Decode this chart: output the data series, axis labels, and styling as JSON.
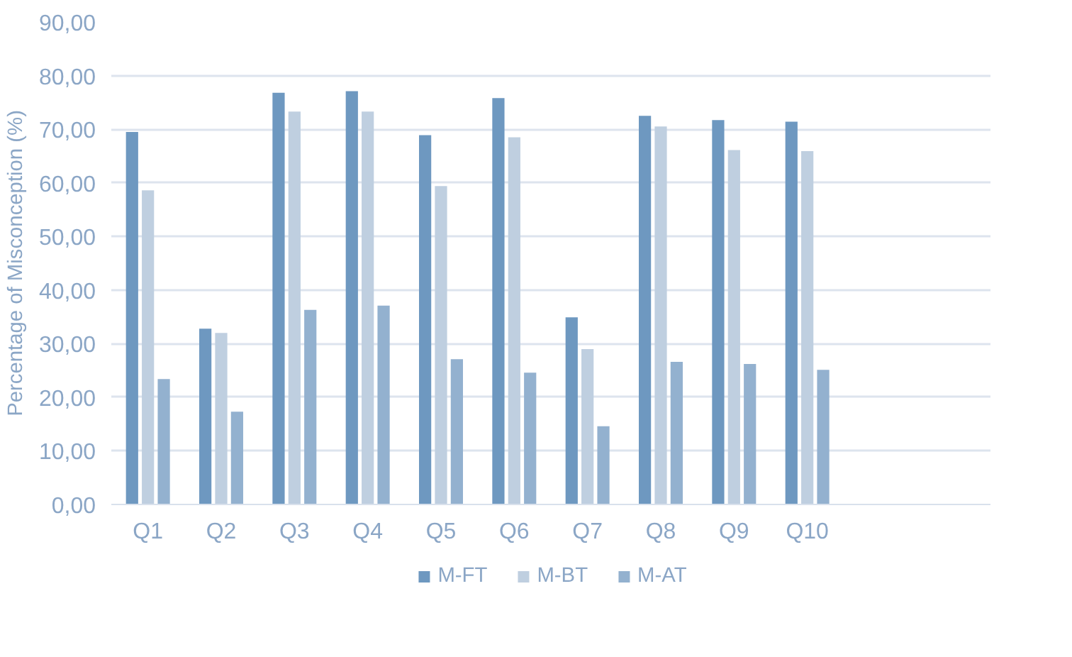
{
  "chart_data": {
    "type": "bar",
    "ylabel": "Percentage of Misconception (%)",
    "categories": [
      "Q1",
      "Q2",
      "Q3",
      "Q4",
      "Q5",
      "Q6",
      "Q7",
      "Q8",
      "Q9",
      "Q10",
      null,
      null
    ],
    "series": [
      {
        "name": "M-FT",
        "color": "#6e98c0",
        "values": [
          69.5,
          32.8,
          76.8,
          77.1,
          68.9,
          75.8,
          34.9,
          72.5,
          71.7,
          71.4,
          null,
          null
        ]
      },
      {
        "name": "M-BT",
        "color": "#bfcfe0",
        "values": [
          58.6,
          32.0,
          73.3,
          73.3,
          59.4,
          68.5,
          29.0,
          70.5,
          66.1,
          65.9,
          null,
          null
        ]
      },
      {
        "name": "M-AT",
        "color": "#93b1cf",
        "values": [
          23.4,
          17.3,
          36.3,
          37.1,
          27.1,
          24.6,
          14.6,
          26.6,
          26.2,
          25.1,
          null,
          null
        ]
      }
    ],
    "ylim": [
      0,
      90
    ],
    "yticks": [
      {
        "value": 0,
        "label": "0,00"
      },
      {
        "value": 10,
        "label": "10,00"
      },
      {
        "value": 20,
        "label": "20,00"
      },
      {
        "value": 30,
        "label": "30,00"
      },
      {
        "value": 40,
        "label": "40,00"
      },
      {
        "value": 50,
        "label": "50,00"
      },
      {
        "value": 60,
        "label": "60,00"
      },
      {
        "value": 70,
        "label": "70,00"
      },
      {
        "value": 80,
        "label": "80,00"
      },
      {
        "value": 90,
        "label": "90,00"
      }
    ],
    "grid": "y",
    "legend": "bottom"
  }
}
